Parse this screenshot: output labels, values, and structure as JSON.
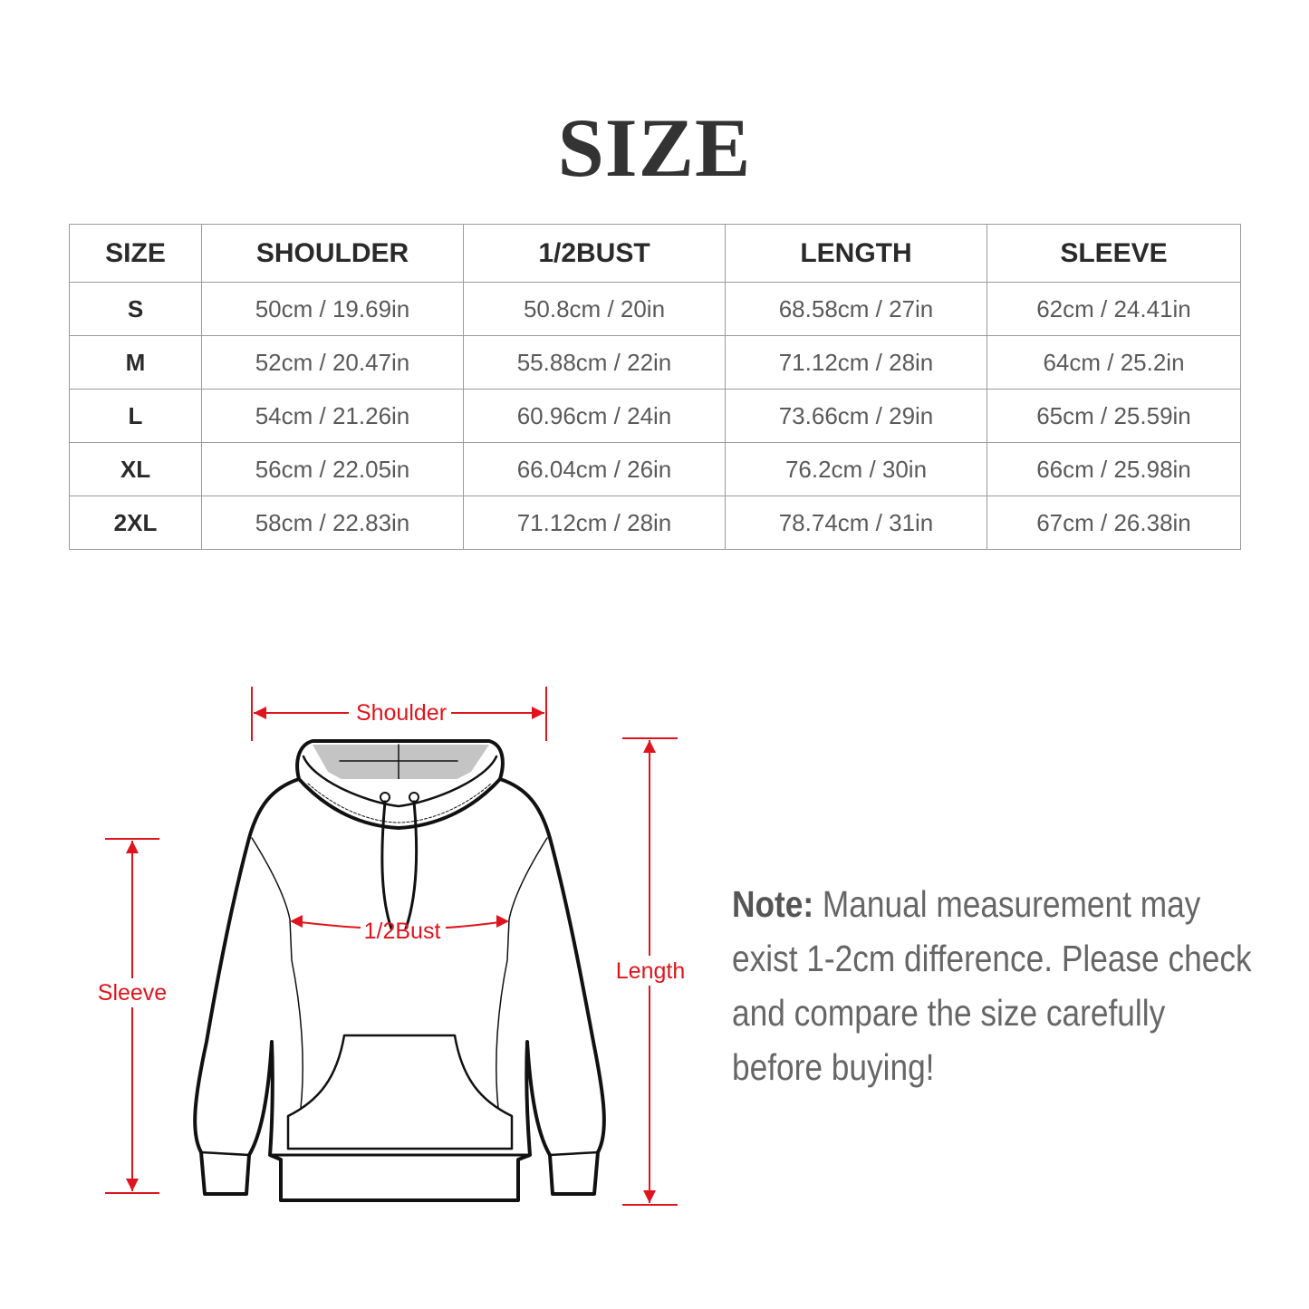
{
  "title": "SIZE",
  "table": {
    "headers": [
      "SIZE",
      "SHOULDER",
      "1/2BUST",
      "LENGTH",
      "SLEEVE"
    ],
    "rows": [
      [
        "S",
        "50cm / 19.69in",
        "50.8cm / 20in",
        "68.58cm / 27in",
        "62cm / 24.41in"
      ],
      [
        "M",
        "52cm / 20.47in",
        "55.88cm / 22in",
        "71.12cm / 28in",
        "64cm / 25.2in"
      ],
      [
        "L",
        "54cm / 21.26in",
        "60.96cm / 24in",
        "73.66cm / 29in",
        "65cm / 25.59in"
      ],
      [
        "XL",
        "56cm / 22.05in",
        "66.04cm / 26in",
        "76.2cm / 30in",
        "66cm / 25.98in"
      ],
      [
        "2XL",
        "58cm / 22.83in",
        "71.12cm / 28in",
        "78.74cm / 31in",
        "67cm / 26.38in"
      ]
    ]
  },
  "diagram": {
    "shoulder": "Shoulder",
    "bust": "1/2Bust",
    "sleeve": "Sleeve",
    "length": "Length",
    "accent_color": "#e0141c"
  },
  "note": {
    "label": "Note:",
    "text": " Manual measurement may exist 1-2cm difference. Please check and compare the size carefully before buying!"
  }
}
